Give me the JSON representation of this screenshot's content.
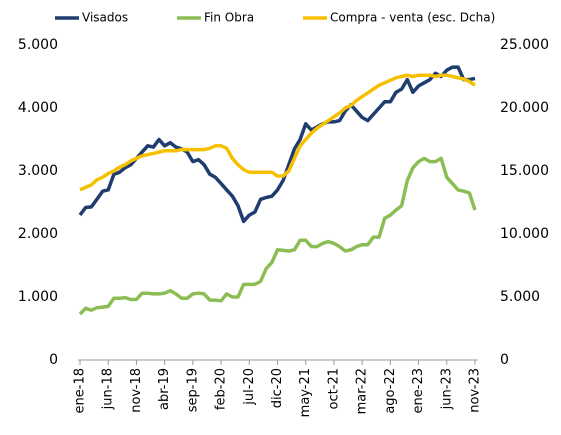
{
  "chart_data": {
    "type": "line",
    "categories": [
      "ene-18",
      null,
      null,
      null,
      null,
      "jun-18",
      null,
      null,
      null,
      null,
      "nov-18",
      null,
      null,
      null,
      null,
      "abr-19",
      null,
      null,
      null,
      null,
      "sep-19",
      null,
      null,
      null,
      null,
      "feb-20",
      null,
      null,
      null,
      null,
      "jul-20",
      null,
      null,
      null,
      null,
      "dic-20",
      null,
      null,
      null,
      null,
      "may-21",
      null,
      null,
      null,
      null,
      "oct-21",
      null,
      null,
      null,
      null,
      "mar-22",
      null,
      null,
      null,
      null,
      "ago-22",
      null,
      null,
      null,
      null,
      "ene-23",
      null,
      null,
      null,
      null,
      "jun-23",
      null,
      null,
      null,
      null,
      "nov-23"
    ],
    "series": [
      {
        "name": "Visados",
        "color": "#1f3d6e",
        "values": [
          2300,
          2420,
          2430,
          2550,
          2680,
          2700,
          2950,
          2980,
          3050,
          3100,
          3200,
          3300,
          3400,
          3380,
          3500,
          3400,
          3450,
          3380,
          3350,
          3300,
          3150,
          3180,
          3100,
          2950,
          2900,
          2800,
          2700,
          2600,
          2450,
          2200,
          2300,
          2350,
          2550,
          2580,
          2600,
          2700,
          2850,
          3100,
          3350,
          3500,
          3750,
          3650,
          3700,
          3750,
          3780,
          3780,
          3800,
          3950,
          4050,
          3950,
          3850,
          3800,
          3900,
          4000,
          4100,
          4100,
          4250,
          4300,
          4450,
          4250,
          4350,
          4400,
          4450,
          4550,
          4500,
          4600,
          4650,
          4650,
          4450,
          4450,
          4470
        ]
      },
      {
        "name": "Fin Obra",
        "color": "#8cbd55",
        "values": [
          730,
          820,
          790,
          830,
          840,
          850,
          980,
          980,
          990,
          960,
          960,
          1060,
          1060,
          1050,
          1050,
          1060,
          1100,
          1050,
          980,
          980,
          1050,
          1060,
          1050,
          950,
          950,
          940,
          1050,
          1000,
          1000,
          1200,
          1200,
          1200,
          1250,
          1450,
          1550,
          1750,
          1740,
          1730,
          1750,
          1900,
          1900,
          1800,
          1800,
          1850,
          1880,
          1850,
          1800,
          1730,
          1750,
          1800,
          1830,
          1830,
          1950,
          1950,
          2250,
          2300,
          2380,
          2450,
          2850,
          3050,
          3150,
          3200,
          3150,
          3150,
          3200,
          2900,
          2800,
          2700,
          2680,
          2650,
          2380
        ]
      },
      {
        "name": "Compra - venta (esc. Dcha)",
        "color": "#f5c000",
        "axis": "y2",
        "values": [
          13500,
          13700,
          13900,
          14300,
          14500,
          14800,
          15000,
          15300,
          15500,
          15800,
          16000,
          16200,
          16300,
          16400,
          16500,
          16600,
          16600,
          16600,
          16700,
          16700,
          16700,
          16700,
          16700,
          16800,
          17000,
          17000,
          16800,
          16000,
          15500,
          15100,
          14900,
          14900,
          14900,
          14900,
          14900,
          14600,
          14600,
          15000,
          16000,
          17000,
          17500,
          18000,
          18400,
          18700,
          19000,
          19300,
          19600,
          20000,
          20200,
          20600,
          20900,
          21200,
          21500,
          21800,
          22000,
          22200,
          22400,
          22500,
          22600,
          22500,
          22600,
          22600,
          22600,
          22500,
          22600,
          22600,
          22500,
          22400,
          22300,
          22100,
          21800
        ]
      }
    ],
    "ylim": [
      0,
      5000
    ],
    "yticks": [
      0,
      {
        "value": 1000,
        "label": "1.000"
      },
      {
        "value": 2000,
        "label": "2.000"
      },
      {
        "value": 3000,
        "label": "3.000"
      },
      {
        "value": 4000,
        "label": "4.000"
      },
      {
        "value": 5000,
        "label": "5.000"
      }
    ],
    "y2lim": [
      0,
      25000
    ],
    "y2ticks": [
      0,
      {
        "value": 5000,
        "label": "5.000"
      },
      {
        "value": 10000,
        "label": "10.000"
      },
      {
        "value": 15000,
        "label": "15.000"
      },
      {
        "value": 20000,
        "label": "20.000"
      },
      {
        "value": 25000,
        "label": "25.000"
      }
    ],
    "grid": false
  }
}
